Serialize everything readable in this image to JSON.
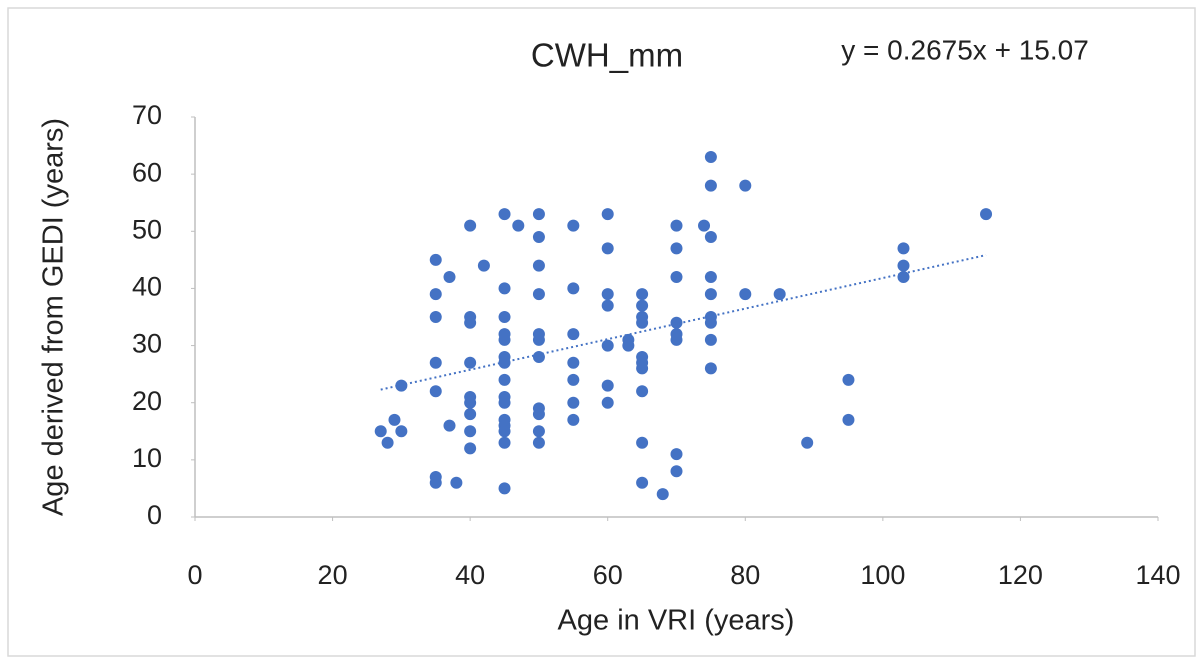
{
  "chart_data": {
    "type": "scatter",
    "title": "CWH_mm",
    "annotation": "y = 0.2675x + 15.07",
    "xlabel": "Age in VRI (years)",
    "ylabel": "Age derived from GEDI (years)",
    "color": "#4472c4",
    "trendline": {
      "slope": 0.2675,
      "intercept": 15.07
    },
    "xlim": [
      0,
      140
    ],
    "xticks": [
      0,
      20,
      40,
      60,
      80,
      100,
      120,
      140
    ],
    "ylim": [
      0,
      70
    ],
    "yticks": [
      0,
      10,
      20,
      30,
      40,
      50,
      60,
      70
    ],
    "x": [
      27,
      28,
      29,
      30,
      30,
      35,
      35,
      35,
      35,
      35,
      35,
      35,
      37,
      37,
      38,
      40,
      40,
      40,
      40,
      40,
      40,
      40,
      40,
      40,
      42,
      45,
      45,
      45,
      45,
      45,
      45,
      45,
      45,
      45,
      45,
      45,
      45,
      45,
      45,
      45,
      47,
      50,
      50,
      50,
      50,
      50,
      50,
      50,
      50,
      50,
      50,
      50,
      55,
      55,
      55,
      55,
      55,
      55,
      55,
      60,
      60,
      60,
      60,
      60,
      60,
      60,
      63,
      63,
      65,
      65,
      65,
      65,
      65,
      65,
      65,
      65,
      65,
      65,
      68,
      70,
      70,
      70,
      70,
      70,
      70,
      70,
      70,
      74,
      75,
      75,
      75,
      75,
      75,
      75,
      75,
      75,
      75,
      80,
      80,
      85,
      89,
      95,
      95,
      103,
      103,
      103,
      115
    ],
    "y": [
      15,
      13,
      17,
      23,
      15,
      45,
      39,
      35,
      27,
      22,
      7,
      6,
      42,
      16,
      6,
      51,
      35,
      34,
      27,
      21,
      20,
      18,
      15,
      12,
      44,
      53,
      40,
      35,
      32,
      31,
      28,
      27,
      24,
      21,
      20,
      17,
      16,
      15,
      13,
      5,
      51,
      53,
      49,
      44,
      39,
      32,
      31,
      28,
      19,
      18,
      15,
      13,
      51,
      40,
      32,
      27,
      24,
      20,
      17,
      53,
      47,
      39,
      37,
      30,
      23,
      20,
      31,
      30,
      39,
      37,
      35,
      34,
      28,
      27,
      26,
      22,
      13,
      6,
      4,
      51,
      47,
      42,
      34,
      32,
      31,
      11,
      8,
      51,
      63,
      58,
      49,
      42,
      39,
      35,
      34,
      31,
      26,
      58,
      39,
      39,
      13,
      24,
      17,
      47,
      44,
      42,
      53
    ]
  }
}
